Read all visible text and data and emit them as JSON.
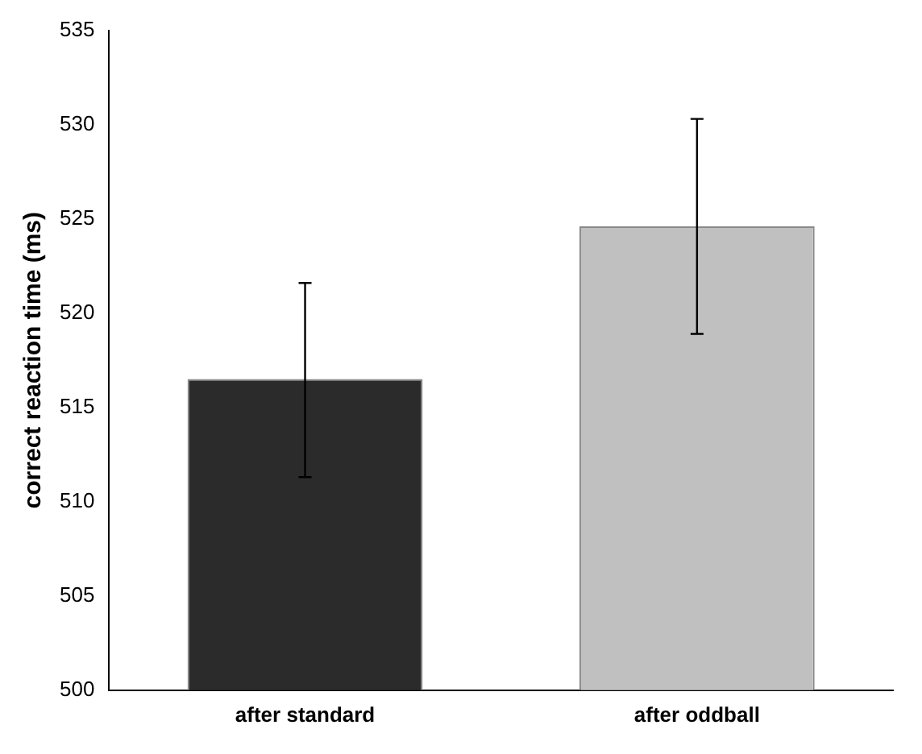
{
  "chart_data": {
    "type": "bar",
    "ylabel": "correct reaction time (ms)",
    "categories": [
      "after standard",
      "after oddball"
    ],
    "values": [
      516.5,
      524.6
    ],
    "colors": [
      "#2b2b2b",
      "#c0c0c0"
    ],
    "errors": [
      [
        511.3,
        521.6
      ],
      [
        518.9,
        530.3
      ]
    ],
    "ylim": [
      500,
      535
    ],
    "yticks": [
      500,
      505,
      510,
      515,
      520,
      525,
      530,
      535
    ],
    "grid": false,
    "legend": false
  }
}
